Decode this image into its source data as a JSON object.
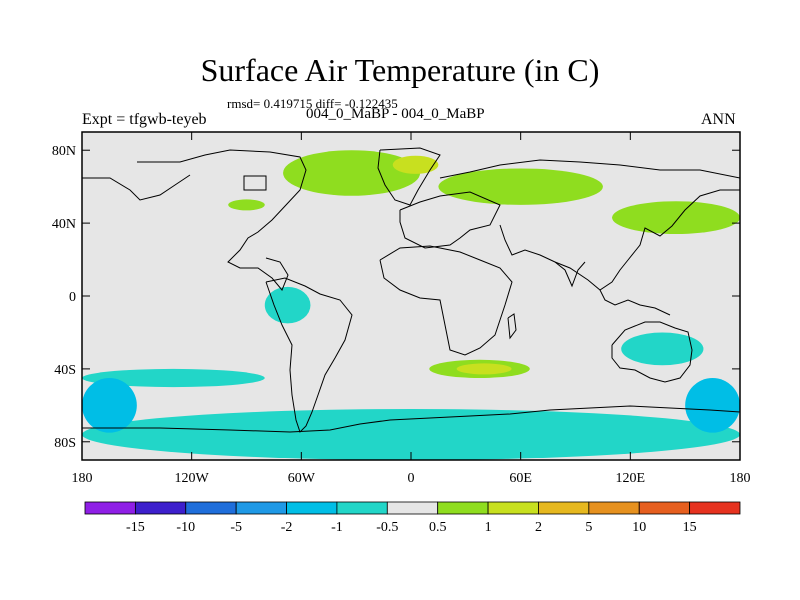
{
  "header": {
    "title": "Surface Air Temperature (in C)",
    "stats": "rmsd= 0.419715 diff= -0.122435",
    "experiment_label": "Expt = tfgwb-teyeb",
    "comparison": "004_0_MaBP - 004_0_MaBP",
    "season": "ANN"
  },
  "map": {
    "lon_range": [
      -180,
      180
    ],
    "lat_range": [
      -90,
      90
    ],
    "background_color": "#e6e6e6",
    "coastline_color": "#000000",
    "lon_ticks": [
      {
        "value": -180,
        "label": "180"
      },
      {
        "value": -120,
        "label": "120W"
      },
      {
        "value": -60,
        "label": "60W"
      },
      {
        "value": 0,
        "label": "0"
      },
      {
        "value": 60,
        "label": "60E"
      },
      {
        "value": 120,
        "label": "120E"
      },
      {
        "value": 180,
        "label": "180"
      }
    ],
    "lat_ticks": [
      {
        "value": 80,
        "label": "80N"
      },
      {
        "value": 40,
        "label": "40N"
      },
      {
        "value": 0,
        "label": "0"
      },
      {
        "value": -40,
        "label": "40S"
      },
      {
        "value": -80,
        "label": "80S"
      }
    ],
    "anomaly_regions": [
      {
        "level": "0.5-1",
        "color": "#8fdd1f",
        "lon": [
          -70,
          5
        ],
        "lat": [
          55,
          80
        ]
      },
      {
        "level": "1-2",
        "color": "#c8e01f",
        "lon": [
          -10,
          15
        ],
        "lat": [
          67,
          77
        ]
      },
      {
        "level": "0.5-1",
        "color": "#8fdd1f",
        "lon": [
          15,
          105
        ],
        "lat": [
          50,
          70
        ]
      },
      {
        "level": "0.5-1",
        "color": "#8fdd1f",
        "lon": [
          110,
          180
        ],
        "lat": [
          34,
          52
        ]
      },
      {
        "level": "0.5-1",
        "color": "#8fdd1f",
        "lon": [
          -100,
          -80
        ],
        "lat": [
          47,
          53
        ]
      },
      {
        "level": "0.5-1",
        "color": "#8fdd1f",
        "lon": [
          10,
          65
        ],
        "lat": [
          -45,
          -35
        ]
      },
      {
        "level": "1-2",
        "color": "#c8e01f",
        "lon": [
          25,
          55
        ],
        "lat": [
          -43,
          -37
        ]
      },
      {
        "level": "-1--0.5",
        "color": "#22d6c8",
        "lon": [
          -80,
          -55
        ],
        "lat": [
          -15,
          5
        ]
      },
      {
        "level": "-1--0.5",
        "color": "#22d6c8",
        "lon": [
          -180,
          -80
        ],
        "lat": [
          -50,
          -40
        ]
      },
      {
        "level": "-1--0.5",
        "color": "#22d6c8",
        "lon": [
          -180,
          180
        ],
        "lat": [
          -90,
          -62
        ]
      },
      {
        "level": "-1--0.5",
        "color": "#22d6c8",
        "lon": [
          115,
          160
        ],
        "lat": [
          -38,
          -20
        ]
      },
      {
        "level": "-2--1",
        "color": "#00bee6",
        "lon": [
          -180,
          -150
        ],
        "lat": [
          -75,
          -45
        ]
      },
      {
        "level": "-2--1",
        "color": "#00bee6",
        "lon": [
          150,
          180
        ],
        "lat": [
          -75,
          -45
        ]
      }
    ]
  },
  "colorbar": {
    "colors": [
      "#8f1fe6",
      "#3d1fcc",
      "#1f6edb",
      "#1f99e6",
      "#00bee6",
      "#22d6c8",
      "#e6e6e6",
      "#8fdd1f",
      "#c8e01f",
      "#e6b81f",
      "#e6911f",
      "#e65f1f",
      "#e6321f"
    ],
    "labels": [
      "-15",
      "-10",
      "-5",
      "-2",
      "-1",
      "-0.5",
      "0.5",
      "1",
      "2",
      "5",
      "10",
      "15"
    ]
  }
}
